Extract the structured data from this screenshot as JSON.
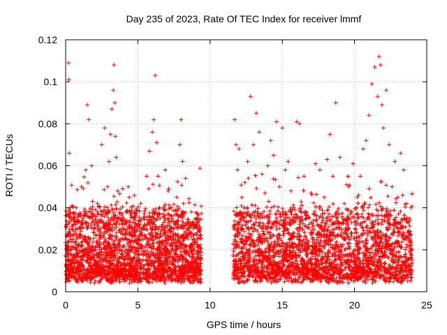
{
  "chart_data": {
    "type": "scatter",
    "title": "Day 235 of 2023, Rate Of TEC Index for receiver lmmf",
    "xlabel": "GPS time / hours",
    "ylabel": "ROTI / TECUs",
    "xlim": [
      0,
      25
    ],
    "ylim": [
      0,
      0.12
    ],
    "x_ticks": [
      0,
      5,
      10,
      15,
      20,
      25
    ],
    "x_tick_labels": [
      "0",
      "5",
      "10",
      "15",
      "20",
      "25"
    ],
    "y_ticks": [
      0,
      0.02,
      0.04,
      0.06,
      0.08,
      0.1,
      0.12
    ],
    "y_tick_labels": [
      "0",
      "0.02",
      "0.04",
      "0.06",
      "0.08",
      "0.1",
      "0.12"
    ],
    "grid": true,
    "marker": "plus",
    "series": [
      {
        "color": "#ff0000",
        "x": [
          0.05,
          0.15,
          0.2,
          0.22,
          0.25,
          0.3,
          0.4,
          0.5,
          0.7,
          0.9,
          1.1,
          1.3,
          1.4,
          1.5,
          1.6,
          1.8,
          2.0,
          2.2,
          2.5,
          2.7,
          2.9,
          3.0,
          3.1,
          3.2,
          3.3,
          3.35,
          3.4,
          3.45,
          3.5,
          3.6,
          3.7,
          3.8,
          4.0,
          4.2,
          4.4,
          4.6,
          4.8,
          5.0,
          5.2,
          5.4,
          5.6,
          5.8,
          6.0,
          6.1,
          6.2,
          6.3,
          6.4,
          6.5,
          6.7,
          6.9,
          7.1,
          7.3,
          7.5,
          7.7,
          7.9,
          8.0,
          8.1,
          8.3,
          8.5,
          8.7,
          8.9,
          9.0,
          9.2,
          11.7,
          11.8,
          11.9,
          12.0,
          12.2,
          12.4,
          12.6,
          12.8,
          13.0,
          13.2,
          13.4,
          13.6,
          13.8,
          14.0,
          14.2,
          14.4,
          14.6,
          14.8,
          15.0,
          15.2,
          15.4,
          15.6,
          15.8,
          16.0,
          16.2,
          16.5,
          16.8,
          17.0,
          17.3,
          17.6,
          17.9,
          18.1,
          18.3,
          18.5,
          18.7,
          19.0,
          19.3,
          19.6,
          19.9,
          20.2,
          20.4,
          20.6,
          20.8,
          21.0,
          21.2,
          21.4,
          21.6,
          21.7,
          21.8,
          21.9,
          22.0,
          22.2,
          22.4,
          22.6,
          22.8,
          23.0,
          23.2,
          23.4,
          23.6,
          23.8,
          23.9
        ],
        "y": [
          0.012,
          0.015,
          0.109,
          0.101,
          0.066,
          0.04,
          0.02,
          0.014,
          0.03,
          0.018,
          0.05,
          0.025,
          0.058,
          0.089,
          0.082,
          0.06,
          0.032,
          0.042,
          0.07,
          0.078,
          0.05,
          0.062,
          0.075,
          0.087,
          0.096,
          0.108,
          0.09,
          0.074,
          0.064,
          0.048,
          0.035,
          0.028,
          0.022,
          0.038,
          0.045,
          0.03,
          0.018,
          0.025,
          0.042,
          0.03,
          0.055,
          0.067,
          0.076,
          0.082,
          0.103,
          0.071,
          0.055,
          0.04,
          0.032,
          0.058,
          0.048,
          0.036,
          0.03,
          0.045,
          0.07,
          0.082,
          0.062,
          0.054,
          0.03,
          0.038,
          0.025,
          0.015,
          0.03,
          0.082,
          0.07,
          0.058,
          0.068,
          0.045,
          0.052,
          0.062,
          0.093,
          0.07,
          0.085,
          0.076,
          0.056,
          0.047,
          0.06,
          0.072,
          0.065,
          0.081,
          0.05,
          0.078,
          0.058,
          0.062,
          0.048,
          0.04,
          0.081,
          0.08,
          0.055,
          0.036,
          0.047,
          0.061,
          0.058,
          0.045,
          0.063,
          0.075,
          0.055,
          0.09,
          0.064,
          0.042,
          0.05,
          0.061,
          0.045,
          0.055,
          0.068,
          0.072,
          0.084,
          0.099,
          0.107,
          0.093,
          0.112,
          0.108,
          0.089,
          0.078,
          0.096,
          0.07,
          0.05,
          0.062,
          0.045,
          0.066,
          0.058,
          0.042,
          0.035,
          0.04
        ]
      }
    ]
  }
}
